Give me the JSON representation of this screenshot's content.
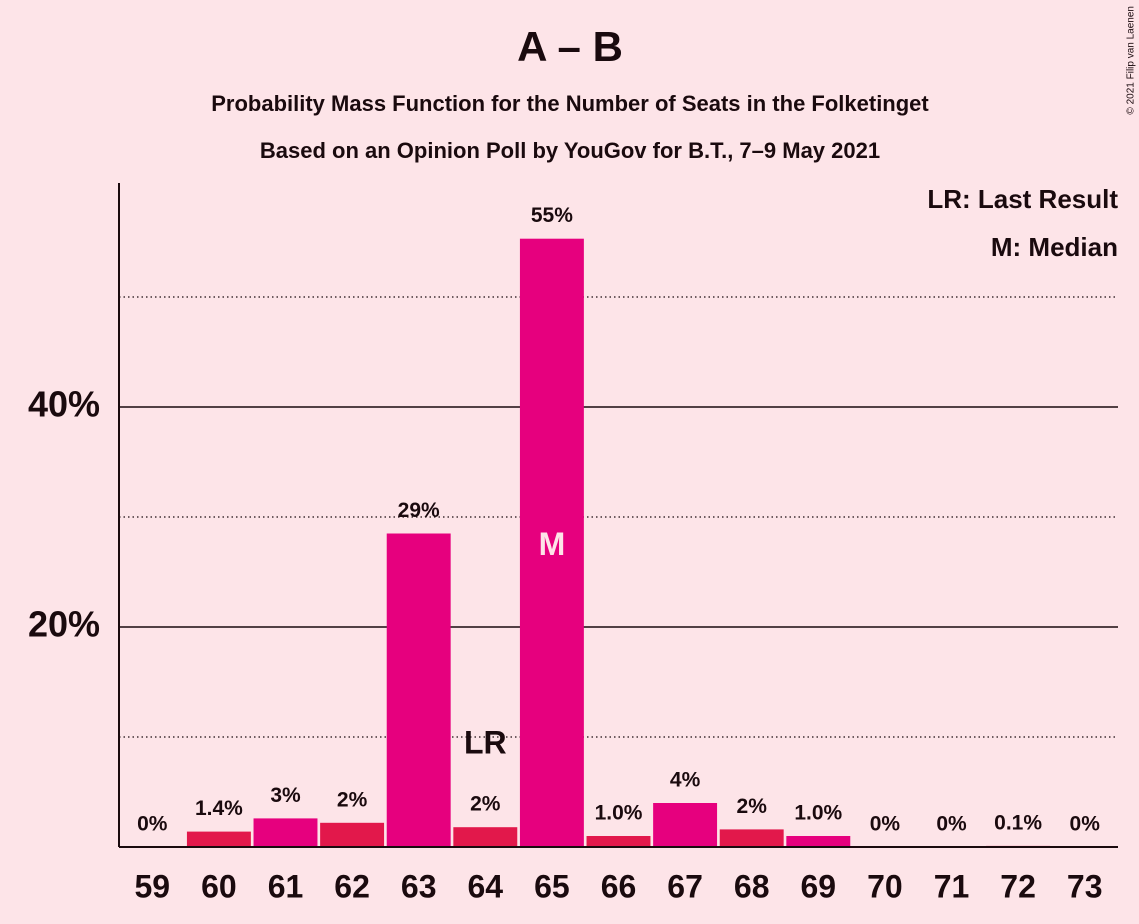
{
  "chart_data": {
    "type": "bar",
    "title": "A – B",
    "subtitle": "Probability Mass Function for the Number of Seats in the Folketinget",
    "subtitle2": "Based on an Opinion Poll by YouGov for B.T., 7–9 May 2021",
    "credit": "© 2021 Filip van Laenen",
    "categories": [
      "59",
      "60",
      "61",
      "62",
      "63",
      "64",
      "65",
      "66",
      "67",
      "68",
      "69",
      "70",
      "71",
      "72",
      "73"
    ],
    "values": [
      0,
      1.4,
      2.6,
      2.2,
      28.5,
      1.8,
      55.3,
      1.0,
      4.0,
      1.6,
      1.0,
      0,
      0,
      0.1,
      0
    ],
    "value_labels": [
      "0%",
      "1.4%",
      "3%",
      "2%",
      "29%",
      "2%",
      "55%",
      "1.0%",
      "4%",
      "2%",
      "1.0%",
      "0%",
      "0%",
      "0.1%",
      "0%"
    ],
    "colors": [
      "#e6007e",
      "#e2184b",
      "#e6007e",
      "#e2184b",
      "#e6007e",
      "#e2184b",
      "#e6007e",
      "#e2184b",
      "#e6007e",
      "#e2184b",
      "#e6007e",
      "#e2184b",
      "#e6007e",
      "#e2184b",
      "#e6007e"
    ],
    "ylim": [
      0,
      60
    ],
    "yticks": [
      {
        "value": 20,
        "label": "20%"
      },
      {
        "value": 40,
        "label": "40%"
      }
    ],
    "minor_yticks": [
      10,
      30,
      50
    ],
    "grid": true,
    "annotations": [
      {
        "text": "LR",
        "category": "64",
        "position": "above"
      },
      {
        "text": "M",
        "category": "65",
        "position": "inside"
      }
    ],
    "legend": [
      "LR: Last Result",
      "M: Median"
    ],
    "legend_position": "upper right"
  }
}
